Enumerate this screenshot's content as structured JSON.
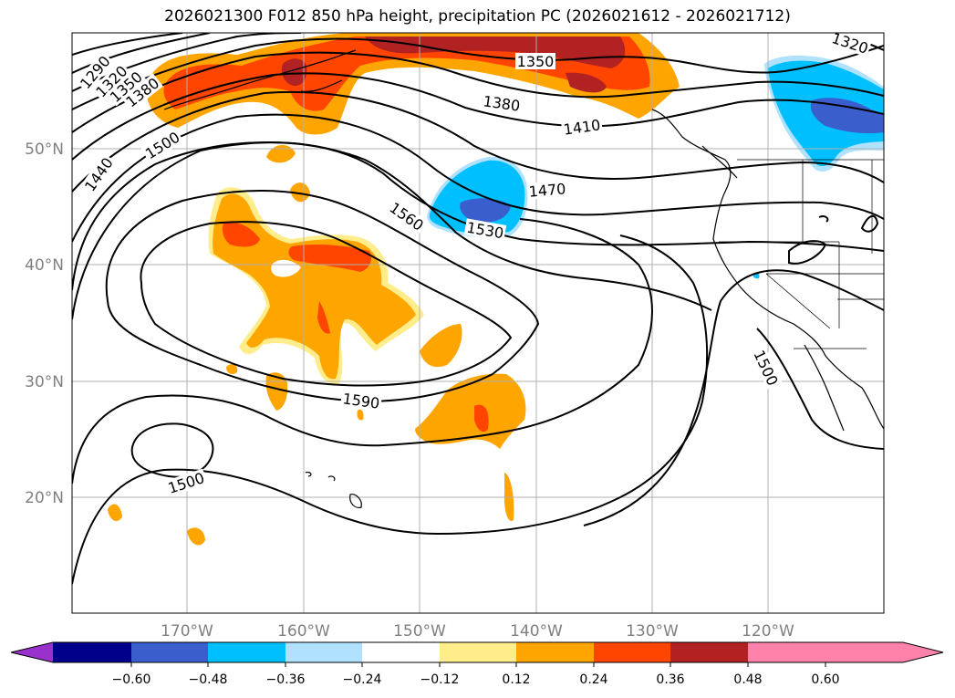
{
  "title": "2026021300 F012 850 hPa height, precipitation PC (2026021612 - 2026021712)",
  "map": {
    "latitude_labels": [
      "50°N",
      "40°N",
      "30°N",
      "20°N"
    ],
    "longitude_labels": [
      "170°W",
      "160°W",
      "150°W",
      "140°W",
      "130°W",
      "120°W"
    ],
    "contour_labels": [
      "1290",
      "1320",
      "1350",
      "1380",
      "1440",
      "1500",
      "1560",
      "1530",
      "1470",
      "1410",
      "1380",
      "1350",
      "1320",
      "1590",
      "1500",
      "1500"
    ]
  },
  "colorbar": {
    "tick_labels": [
      "−0.60",
      "−0.48",
      "−0.36",
      "−0.24",
      "−0.12",
      "0.12",
      "0.24",
      "0.36",
      "0.48",
      "0.60"
    ],
    "colors": [
      "#9932cc",
      "#00008b",
      "#3a5fcd",
      "#00bfff",
      "#b0e2ff",
      "#ffffff",
      "#ffec8b",
      "#ffa500",
      "#ff4500",
      "#b22222",
      "#ff82ab"
    ]
  }
}
